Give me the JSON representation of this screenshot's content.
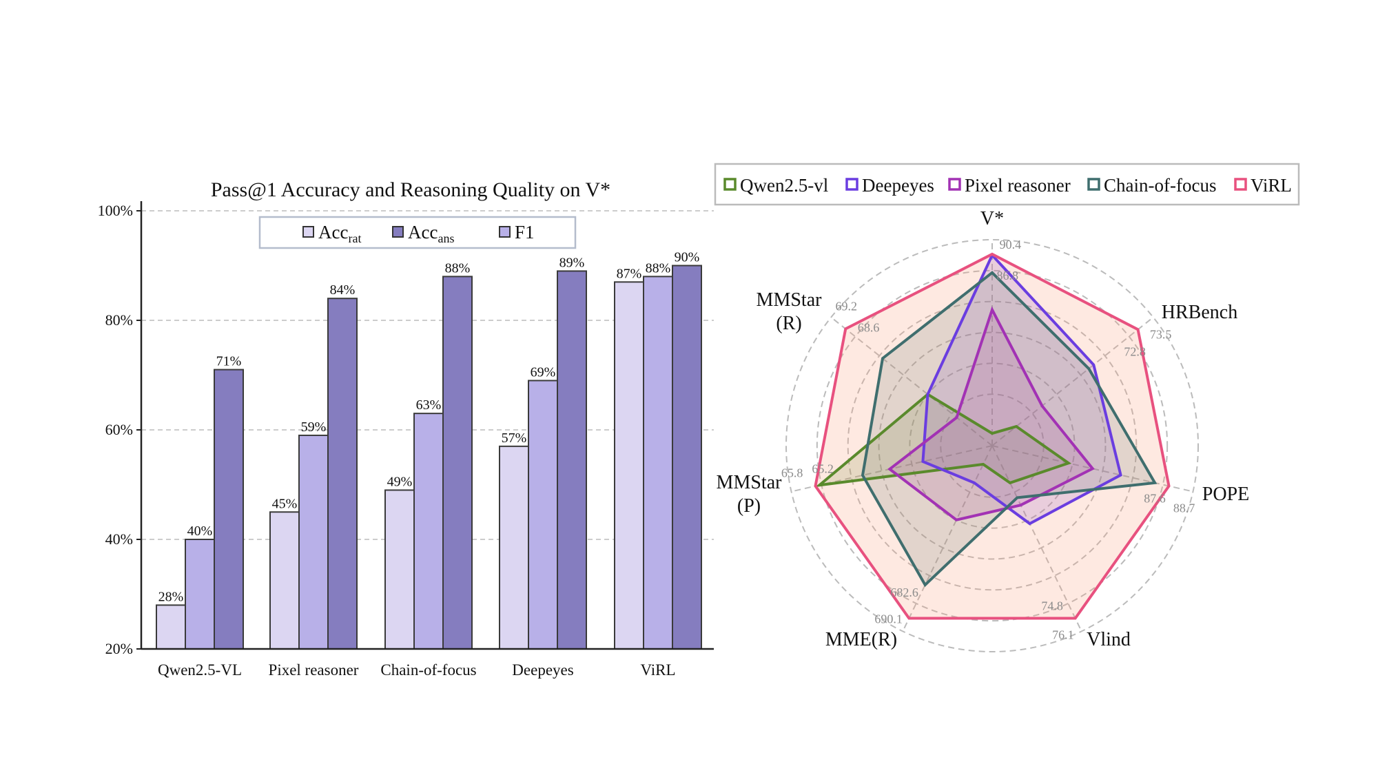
{
  "chart_data": [
    {
      "type": "bar",
      "title": "Pass@1 Accuracy and Reasoning Quality on V*",
      "categories": [
        "Qwen2.5-VL",
        "Pixel reasoner",
        "Chain-of-focus",
        "Deepeyes",
        "ViRL"
      ],
      "series": [
        {
          "name": "Acc",
          "subscript": "rat",
          "color": "#dcd6f2",
          "values": [
            28,
            45,
            49,
            57,
            87
          ]
        },
        {
          "name": "F1",
          "subscript": "",
          "color": "#b8b0e8",
          "values": [
            40,
            59,
            63,
            69,
            88
          ]
        },
        {
          "name": "Acc",
          "subscript": "ans",
          "color": "#857dbf",
          "values": [
            71,
            84,
            88,
            89,
            90
          ]
        }
      ],
      "legend_order": [
        0,
        2,
        1
      ],
      "data_label_suffix": "%",
      "yticks": [
        "20%",
        "40%",
        "60%",
        "80%",
        "100%"
      ],
      "ylim": [
        20,
        100
      ],
      "grid": "horizontal dashed",
      "legend_position": "top-center"
    },
    {
      "type": "radar",
      "axes": [
        {
          "label": [
            "V*"
          ],
          "ticks": [
            "90.4",
            "86.8"
          ]
        },
        {
          "label": [
            "HRBench"
          ],
          "ticks": [
            "73.5",
            "72.8"
          ]
        },
        {
          "label": [
            "POPE"
          ],
          "ticks": [
            "88.7",
            "87.6"
          ]
        },
        {
          "label": [
            "Vlind"
          ],
          "ticks": [
            "76.1",
            "74.8"
          ]
        },
        {
          "label": [
            "MME(R)"
          ],
          "ticks": [
            "690.1",
            "682.6"
          ]
        },
        {
          "label": [
            "MMStar",
            "(P)"
          ],
          "ticks": [
            "65.8",
            "65.2"
          ]
        },
        {
          "label": [
            "MMStar",
            "(R)"
          ],
          "ticks": [
            "69.2",
            "68.6"
          ]
        }
      ],
      "value_scale": "normalized 0-1 per axis",
      "series": [
        {
          "name": "Qwen2.5-vl",
          "color": "#5a8a2c",
          "values": [
            0.06,
            0.15,
            0.38,
            0.2,
            0.1,
            0.86,
            0.4
          ]
        },
        {
          "name": "Deepeyes",
          "color": "#6a3de0",
          "values": [
            0.925,
            0.63,
            0.64,
            0.42,
            0.2,
            0.345,
            0.4
          ]
        },
        {
          "name": "Pixel reasoner",
          "color": "#a232b4",
          "values": [
            0.66,
            0.31,
            0.5,
            0.32,
            0.4,
            0.51,
            0.22
          ]
        },
        {
          "name": "Chain-of-focus",
          "color": "#3f6e6e",
          "values": [
            0.84,
            0.6,
            0.81,
            0.28,
            0.75,
            0.645,
            0.68
          ]
        },
        {
          "name": "ViRL",
          "color": "#e8517f",
          "values": [
            0.93,
            0.905,
            0.88,
            0.93,
            0.93,
            0.88,
            0.91
          ]
        }
      ],
      "legend_position": "top"
    }
  ]
}
